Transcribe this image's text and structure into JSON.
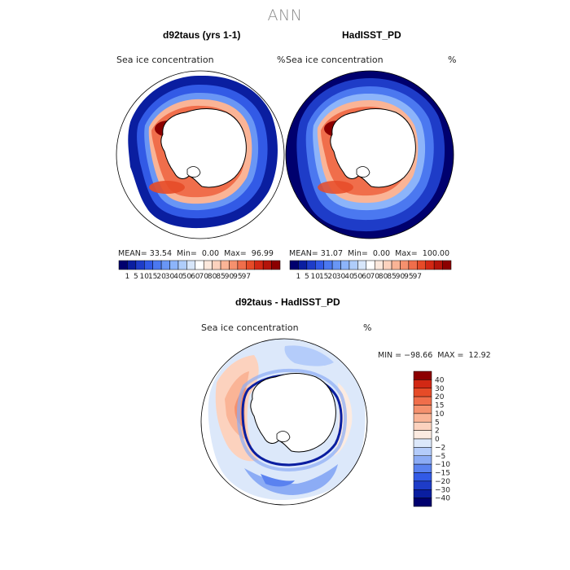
{
  "title": "ANN",
  "colors": {
    "abs_palette": [
      "#00006e",
      "#0a1ea0",
      "#1e3cc8",
      "#325ae6",
      "#4b78f0",
      "#6996f5",
      "#8cb4fa",
      "#afcdfa",
      "#d7e6fa",
      "#ffffff",
      "#fce8dc",
      "#fcd2be",
      "#fab496",
      "#f5916e",
      "#f06e4b",
      "#e64b28",
      "#d22814",
      "#b4140a",
      "#8c0000"
    ],
    "diff_palette": [
      "#00006e",
      "#0a1ea0",
      "#1e3cc8",
      "#325ae6",
      "#5a82f0",
      "#8cacf5",
      "#b4ccfa",
      "#dce8fa",
      "#fcebe1",
      "#fcd2be",
      "#fab496",
      "#f5916e",
      "#f06e4b",
      "#e64b28",
      "#d22814",
      "#8c0000"
    ]
  },
  "panels": {
    "left": {
      "subtitle": "d92taus (yrs 1-1)",
      "var_label": "Sea ice concentration",
      "units": "%",
      "mean_label": "MEAN=",
      "mean": "33.54",
      "min_label": "Min=",
      "min": "0.00",
      "max_label": "Max=",
      "max": "96.99"
    },
    "right": {
      "subtitle": "HadISST_PD",
      "var_label": "Sea ice concentration",
      "units": "%",
      "mean_label": "MEAN=",
      "mean": "31.07",
      "min_label": "Min=",
      "min": "0.00",
      "max_label": "Max=",
      "max": "100.00"
    },
    "diff": {
      "subtitle": "d92taus - HadISST_PD",
      "var_label": "Sea ice concentration",
      "units": "%",
      "minmax_text": "MIN = −98.66  MAX =  12.92"
    }
  },
  "chart_data": [
    {
      "type": "heatmap",
      "projection": "south-polar-stereographic",
      "title": "d92taus (yrs 1-1)",
      "variable": "Sea ice concentration",
      "units": "%",
      "stats": {
        "mean": 33.54,
        "min": 0.0,
        "max": 96.99
      },
      "colorbar_levels": [
        1,
        5,
        10,
        15,
        20,
        30,
        40,
        50,
        60,
        70,
        80,
        85,
        90,
        95,
        97
      ]
    },
    {
      "type": "heatmap",
      "projection": "south-polar-stereographic",
      "title": "HadISST_PD",
      "variable": "Sea ice concentration",
      "units": "%",
      "stats": {
        "mean": 31.07,
        "min": 0.0,
        "max": 100.0
      },
      "colorbar_levels": [
        1,
        5,
        10,
        15,
        20,
        30,
        40,
        50,
        60,
        70,
        80,
        85,
        90,
        95,
        97
      ]
    },
    {
      "type": "heatmap",
      "projection": "south-polar-stereographic",
      "title": "d92taus - HadISST_PD",
      "variable": "Sea ice concentration",
      "units": "%",
      "stats": {
        "min": -98.66,
        "max": 12.92
      },
      "colorbar_levels": [
        40,
        30,
        20,
        15,
        10,
        5,
        2,
        0,
        -2,
        -5,
        -10,
        -15,
        -20,
        -30,
        -40
      ],
      "colorbar_tick_labels": [
        "40",
        "30",
        "20",
        "15",
        "10",
        "5",
        "2",
        "0",
        "−2",
        "−5",
        "−10",
        "−15",
        "−20",
        "−30",
        "−40"
      ]
    }
  ]
}
